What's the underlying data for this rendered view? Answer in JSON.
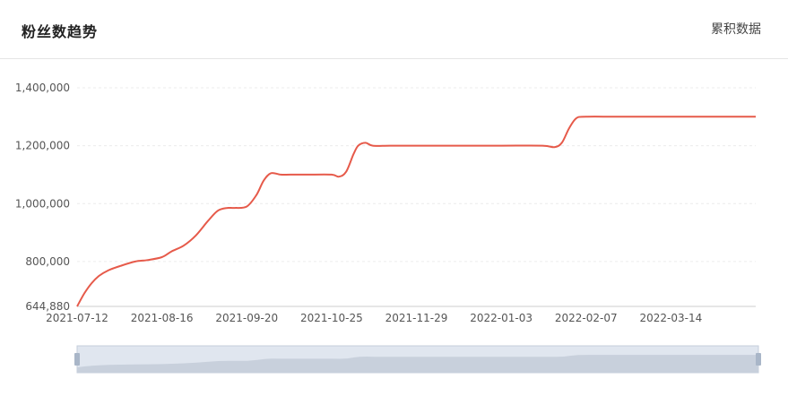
{
  "header": {
    "title": "粉丝数趋势",
    "toggle_label": "累积数据"
  },
  "colors": {
    "line": "#e65a4a",
    "grid": "#ececec",
    "axis": "#cccccc",
    "slider_bg": "#e0e6ef",
    "slider_area": "#c8d0dc",
    "slider_handle": "#a9b6c8"
  },
  "chart_data": {
    "type": "line",
    "title": "",
    "xlabel": "",
    "ylabel": "",
    "ylim": [
      644880,
      1400000
    ],
    "yticks": [
      644880,
      800000,
      1000000,
      1200000,
      1400000
    ],
    "ytick_labels": [
      "644,880",
      "800,000",
      "1,000,000",
      "1,200,000",
      "1,400,000"
    ],
    "xlim": [
      "2021-07-12",
      "2022-04-18"
    ],
    "xticks": [
      "2021-07-12",
      "2021-08-16",
      "2021-09-20",
      "2021-10-25",
      "2021-11-29",
      "2022-01-03",
      "2022-02-07",
      "2022-03-14"
    ],
    "grid": true,
    "series": [
      {
        "x": [
          "2021-07-12",
          "2021-07-15",
          "2021-07-18",
          "2021-07-21",
          "2021-07-25",
          "2021-07-30",
          "2021-08-05",
          "2021-08-10",
          "2021-08-16",
          "2021-08-20",
          "2021-08-25",
          "2021-08-30",
          "2021-09-04",
          "2021-09-08",
          "2021-09-12",
          "2021-09-15",
          "2021-09-20",
          "2021-09-24",
          "2021-09-27",
          "2021-09-30",
          "2021-10-04",
          "2021-10-08",
          "2021-10-15",
          "2021-10-25",
          "2021-10-28",
          "2021-10-31",
          "2021-11-03",
          "2021-11-05",
          "2021-11-08",
          "2021-11-11",
          "2021-11-18",
          "2021-11-29",
          "2021-12-15",
          "2022-01-03",
          "2022-01-20",
          "2022-01-25",
          "2022-01-28",
          "2022-01-31",
          "2022-02-03",
          "2022-02-07",
          "2022-02-20",
          "2022-03-14",
          "2022-04-01",
          "2022-04-18"
        ],
        "values": [
          644880,
          690000,
          725000,
          750000,
          770000,
          785000,
          800000,
          805000,
          815000,
          835000,
          855000,
          890000,
          940000,
          975000,
          985000,
          985000,
          990000,
          1030000,
          1080000,
          1105000,
          1100000,
          1100000,
          1100000,
          1100000,
          1093000,
          1110000,
          1170000,
          1200000,
          1210000,
          1200000,
          1200000,
          1200000,
          1200000,
          1200000,
          1200000,
          1195000,
          1210000,
          1260000,
          1295000,
          1300000,
          1300000,
          1300000,
          1300000,
          1300000
        ]
      }
    ]
  }
}
